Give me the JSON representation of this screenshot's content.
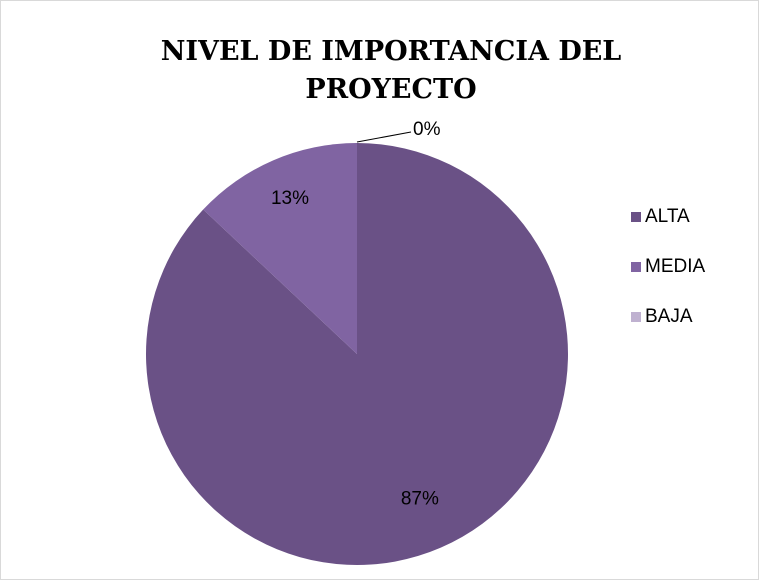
{
  "chart_data": {
    "type": "pie",
    "title": "NIVEL DE IMPORTANCIA DEL PROYECTO",
    "categories": [
      "ALTA",
      "MEDIA",
      "BAJA"
    ],
    "values": [
      87,
      13,
      0
    ],
    "value_labels": [
      "87%",
      "13%",
      "0%"
    ],
    "colors": [
      "#6a5186",
      "#8064a2",
      "#bfb1d0"
    ],
    "legend": "right"
  }
}
